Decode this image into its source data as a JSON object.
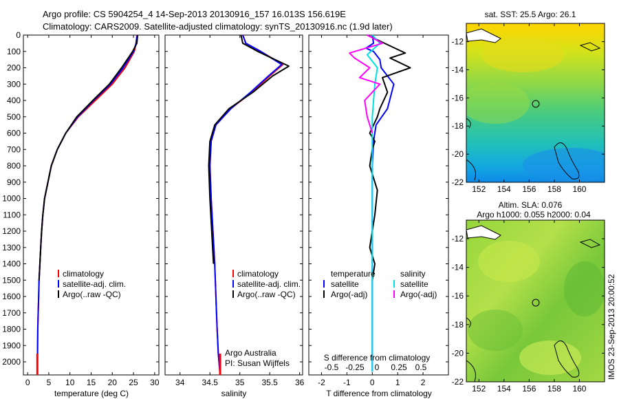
{
  "header": {
    "line1": "Argo profile: CS 5904254_4 14-Sep-2013 20130916_157 16.013S 156.619E",
    "line2": "Climatology: CARS2009. Satellite-adjusted climatology: synTS_20130916.nc (1.9d later)"
  },
  "colors": {
    "climatology": "#ff0000",
    "satellite": "#0000ff",
    "argo": "#000000",
    "sat_salinity": "#00e0e0",
    "argo_salinity": "#ff00ff"
  },
  "chart_data": [
    {
      "type": "line",
      "id": "temperature",
      "xlabel": "temperature (deg C)",
      "ylabel": "",
      "xlim": [
        -1,
        31
      ],
      "ylim": [
        2080,
        0
      ],
      "xticks": [
        0,
        5,
        10,
        15,
        20,
        25,
        30
      ],
      "yticks": [
        0,
        100,
        200,
        300,
        400,
        500,
        600,
        700,
        800,
        900,
        1000,
        1100,
        1200,
        1300,
        1400,
        1500,
        1600,
        1700,
        1800,
        1900,
        2000
      ],
      "legend": [
        "climatology",
        "satellite-adj. clim.",
        "Argo(..raw -QC)"
      ],
      "series": [
        {
          "name": "climatology",
          "color": "#ff0000",
          "x": [
            25.8,
            25.6,
            25.2,
            23.0,
            20.0,
            16.0,
            12.0,
            9.0,
            7.0,
            5.6,
            4.8,
            4.0,
            3.6,
            3.3,
            3.1,
            2.9,
            2.7,
            2.6,
            2.5,
            2.4,
            2.3
          ],
          "y": [
            0,
            50,
            100,
            200,
            300,
            400,
            500,
            600,
            700,
            800,
            900,
            1000,
            1100,
            1200,
            1300,
            1400,
            1500,
            1600,
            1700,
            1800,
            2080
          ]
        },
        {
          "name": "satellite-adj. clim.",
          "color": "#0000ff",
          "x": [
            25.9,
            25.6,
            25.0,
            22.6,
            19.6,
            15.6,
            11.8,
            9.0,
            7.0,
            5.6,
            4.8,
            4.0,
            3.6,
            3.3,
            3.1,
            2.9,
            2.7,
            2.6,
            2.5,
            2.4,
            2.3
          ],
          "y": [
            0,
            50,
            100,
            200,
            300,
            400,
            500,
            600,
            700,
            800,
            900,
            1000,
            1100,
            1200,
            1300,
            1400,
            1500,
            1600,
            1700,
            1800,
            2080
          ]
        },
        {
          "name": "Argo(..raw -QC)",
          "color": "#000000",
          "x": [
            26.0,
            25.8,
            24.8,
            22.2,
            19.3,
            15.4,
            11.6,
            9.0,
            7.0,
            5.6,
            4.8,
            4.0,
            3.6,
            3.3,
            3.1,
            2.9,
            2.7
          ],
          "y": [
            0,
            50,
            100,
            200,
            300,
            400,
            500,
            600,
            700,
            800,
            900,
            1000,
            1100,
            1200,
            1300,
            1400,
            1500
          ]
        }
      ]
    },
    {
      "type": "line",
      "id": "salinity",
      "xlabel": "salinity",
      "ylabel": "",
      "xlim": [
        33.75,
        36.05
      ],
      "ylim": [
        2080,
        0
      ],
      "xticks": [
        34,
        34.5,
        35,
        35.5,
        36
      ],
      "legend": [
        "climatology",
        "satellite-adj. clim.",
        "Argo(..raw -QC)"
      ],
      "annotations": [
        "Argo Australia",
        "PI: Susan Wijffels"
      ],
      "series": [
        {
          "name": "climatology",
          "color": "#ff0000",
          "x": [
            35.05,
            35.1,
            35.35,
            35.72,
            35.5,
            35.2,
            34.85,
            34.6,
            34.52,
            34.5,
            34.52,
            34.55,
            34.58,
            34.6,
            34.62,
            34.64,
            34.67
          ],
          "y": [
            0,
            50,
            100,
            180,
            250,
            350,
            450,
            550,
            650,
            800,
            1000,
            1200,
            1400,
            1600,
            1800,
            1950,
            2080
          ]
        },
        {
          "name": "satellite-adj. clim.",
          "color": "#0000ff",
          "x": [
            35.05,
            35.1,
            35.35,
            35.7,
            35.48,
            35.18,
            34.85,
            34.6,
            34.52,
            34.5,
            34.52,
            34.55,
            34.58,
            34.6,
            34.62,
            34.64,
            34.67
          ],
          "y": [
            0,
            50,
            100,
            180,
            250,
            350,
            450,
            550,
            650,
            800,
            1000,
            1200,
            1400,
            1600,
            1800,
            1950,
            2080
          ]
        },
        {
          "name": "Argo(..raw -QC)",
          "color": "#000000",
          "x": [
            35.02,
            35.05,
            35.3,
            35.82,
            35.55,
            35.22,
            34.82,
            34.58,
            34.5,
            34.48,
            34.5,
            34.53,
            34.56
          ],
          "y": [
            0,
            50,
            100,
            190,
            250,
            350,
            450,
            550,
            650,
            800,
            1000,
            1200,
            1400
          ]
        }
      ]
    },
    {
      "type": "line",
      "id": "differences",
      "xlabel": "T difference from climatology",
      "xlabel_top": "S difference from climatology",
      "xlim": [
        -2.5,
        3
      ],
      "ylim": [
        2080,
        0
      ],
      "xticks": [
        -2,
        -1,
        0,
        1,
        2
      ],
      "xticks_top": [
        "-0.5",
        "-0.25",
        "0",
        "0.25",
        "0.5"
      ],
      "legend_temperature": [
        "temperature",
        "satellite",
        "Argo(-adj)"
      ],
      "legend_salinity": [
        "salinity",
        "satellite",
        "Argo(-adj)"
      ],
      "series": [
        {
          "name": "satellite",
          "color": "#0000ff",
          "x": [
            0,
            0.05,
            -0.25,
            0.05,
            0.3,
            0.35,
            0.85,
            0.6,
            0.15,
            0.05,
            0,
            0,
            0,
            0
          ],
          "y": [
            0,
            50,
            80,
            100,
            150,
            200,
            300,
            450,
            550,
            650,
            800,
            1200,
            1600,
            2060
          ]
        },
        {
          "name": "Argo(-adj)",
          "color": "#000000",
          "x": [
            -0.2,
            1.3,
            0.7,
            1.5,
            0.4,
            0.6,
            0.3,
            0.2,
            -0.1,
            0.1,
            0,
            -0.1,
            0.2,
            0.1,
            0,
            -0.1,
            0.1,
            0
          ],
          "y": [
            0,
            110,
            140,
            200,
            260,
            350,
            450,
            500,
            600,
            650,
            700,
            800,
            950,
            1100,
            1200,
            1300,
            1400,
            1500
          ]
        },
        {
          "name": "satellite",
          "color": "#00e0e0",
          "x": [
            0,
            0.3,
            -0.2,
            0.2,
            0.1,
            0,
            0,
            0,
            0
          ],
          "y": [
            0,
            50,
            120,
            200,
            300,
            500,
            1000,
            1500,
            2060
          ]
        },
        {
          "name": "Argo(-adj)",
          "color": "#ff00ff",
          "x": [
            -0.2,
            0.4,
            -0.9,
            -0.7,
            -0.1,
            -0.5,
            0.3,
            -0.3,
            -0.2,
            0
          ],
          "y": [
            0,
            50,
            110,
            140,
            200,
            260,
            300,
            400,
            500,
            600
          ]
        }
      ]
    },
    {
      "type": "heatmap",
      "id": "sst-map",
      "title": "sat. SST: 25.5  Argo: 26.1",
      "xticks": [
        152,
        154,
        156,
        158,
        160
      ],
      "yticks": [
        -12,
        -14,
        -16,
        -18,
        -20,
        -22
      ],
      "xlim": [
        151,
        162
      ],
      "ylim": [
        -22,
        -10.7
      ]
    },
    {
      "type": "heatmap",
      "id": "sla-map",
      "title_line1": "Altim. SLA: 0.076",
      "title_line2": "Argo h1000: 0.055  h2000: 0.04",
      "xticks": [
        152,
        154,
        156,
        158,
        160
      ],
      "yticks": [
        -12,
        -14,
        -16,
        -18,
        -20,
        -22
      ],
      "xlim": [
        151,
        162
      ],
      "ylim": [
        -22,
        -10.7
      ]
    }
  ],
  "footer": {
    "stamp": "IMOS 23-Sep-2013 20:00:52"
  }
}
